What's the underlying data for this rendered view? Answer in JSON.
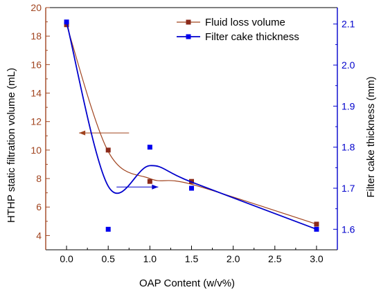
{
  "chart_data": {
    "type": "line",
    "x_categories": [
      "0.0",
      "0.5",
      "1.0",
      "1.5",
      "2.0",
      "2.5",
      "3.0"
    ],
    "xlabel": "OAP Content (w/v%)",
    "ylabel_left": "HTHP static filtration volume (mL)",
    "ylabel_right": "Filter cake thickness (mm)",
    "ylim_left": [
      3,
      20
    ],
    "ylim_right": [
      1.55,
      2.14
    ],
    "yticks_left": [
      "4",
      "6",
      "8",
      "10",
      "12",
      "14",
      "16",
      "18",
      "20"
    ],
    "yticks_right": [
      "1.6",
      "1.7",
      "1.8",
      "1.9",
      "2.0",
      "2.1"
    ],
    "legend_position": "top-right",
    "series": [
      {
        "name": "Fluid loss volume",
        "axis": "left",
        "color": "#a0431e",
        "marker_color": "#8b2a1a",
        "x": [
          0,
          0.5,
          1.0,
          1.5,
          3.0
        ],
        "y": [
          18.8,
          10.0,
          7.8,
          7.8,
          4.8
        ],
        "curve_y": [
          18.8,
          9.9,
          8.0,
          7.6,
          4.8
        ],
        "arrow": {
          "direction": "left",
          "from": [
            0.75,
            11.2
          ],
          "to": [
            0.15,
            11.2
          ]
        }
      },
      {
        "name": "Filter cake thickness",
        "axis": "right",
        "color": "#0000cc",
        "marker_color": "#0000ee",
        "x": [
          0,
          0.5,
          1.0,
          1.5,
          3.0
        ],
        "y": [
          2.105,
          1.6,
          1.8,
          1.7,
          1.6
        ],
        "curve_y": [
          2.105,
          1.705,
          1.755,
          1.715,
          1.6
        ],
        "arrow": {
          "direction": "right",
          "from": [
            0.6,
            1.703
          ],
          "to": [
            1.1,
            1.703
          ]
        }
      }
    ]
  }
}
